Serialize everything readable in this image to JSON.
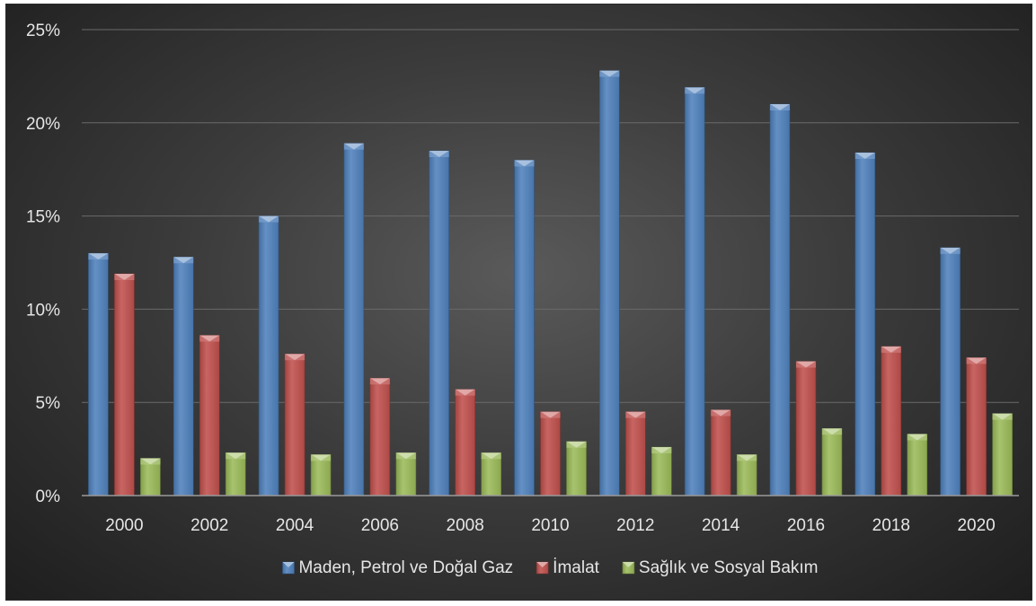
{
  "chart_data": {
    "type": "bar",
    "categories": [
      "2000",
      "2002",
      "2004",
      "2006",
      "2008",
      "2010",
      "2012",
      "2014",
      "2016",
      "2018",
      "2020"
    ],
    "series": [
      {
        "name": "Maden, Petrol ve Doğal Gaz",
        "color": "#4f81bd",
        "values": [
          13.0,
          12.8,
          15.0,
          18.9,
          18.5,
          18.0,
          22.8,
          21.9,
          21.0,
          18.4,
          13.3
        ]
      },
      {
        "name": "İmalat",
        "color": "#c0504d",
        "values": [
          11.9,
          8.6,
          7.6,
          6.3,
          5.7,
          4.5,
          4.5,
          4.6,
          7.2,
          8.0,
          7.4
        ]
      },
      {
        "name": "Sağlık ve Sosyal Bakım",
        "color": "#9bbb59",
        "values": [
          2.0,
          2.3,
          2.2,
          2.3,
          2.3,
          2.9,
          2.6,
          2.2,
          3.6,
          3.3,
          4.4
        ]
      }
    ],
    "y_ticks": [
      "0%",
      "5%",
      "10%",
      "15%",
      "20%",
      "25%"
    ],
    "ylim": [
      0,
      25
    ],
    "grid": true,
    "legend_position": "bottom",
    "title": "",
    "xlabel": "",
    "ylabel": ""
  }
}
